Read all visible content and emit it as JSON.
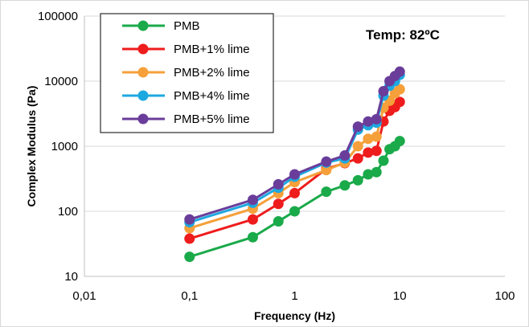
{
  "chart_data": {
    "type": "line",
    "title": "",
    "annotation": "Temp: 82ºC",
    "xlabel": "Frequency (Hz)",
    "ylabel": "Complex Modulus (Pa)",
    "x_scale": "log",
    "y_scale": "log",
    "xlim": [
      0.01,
      100
    ],
    "ylim": [
      10,
      100000
    ],
    "x_ticks": [
      0.01,
      0.1,
      1,
      10,
      100
    ],
    "x_tick_labels": [
      "0,01",
      "0,1",
      "1",
      "10",
      "100"
    ],
    "y_ticks": [
      10,
      100,
      1000,
      10000,
      100000
    ],
    "y_tick_labels": [
      "10",
      "100",
      "1000",
      "10000",
      "100000"
    ],
    "grid": "horizontal",
    "legend_position": "top-left",
    "x": [
      0.1,
      0.4,
      0.7,
      1,
      2,
      3,
      4,
      5,
      6,
      7,
      8,
      9,
      10
    ],
    "series": [
      {
        "name": "PMB",
        "color": "#1aaa4a",
        "values": [
          20,
          40,
          70,
          100,
          200,
          250,
          300,
          370,
          400,
          600,
          900,
          1000,
          1200
        ]
      },
      {
        "name": "PMB+1% lime",
        "color": "#ee1c1c",
        "values": [
          38,
          75,
          130,
          190,
          450,
          550,
          650,
          800,
          850,
          2400,
          3500,
          4000,
          4800
        ]
      },
      {
        "name": "PMB+2% lime",
        "color": "#f5a03a",
        "values": [
          55,
          110,
          190,
          280,
          430,
          560,
          1000,
          1300,
          1400,
          3900,
          5000,
          6500,
          7500
        ]
      },
      {
        "name": "PMB+4% lime",
        "color": "#1ea8e0",
        "values": [
          68,
          135,
          230,
          340,
          560,
          650,
          1800,
          2100,
          2300,
          6000,
          8500,
          10000,
          12500
        ]
      },
      {
        "name": "PMB+5% lime",
        "color": "#6a3d9a",
        "values": [
          75,
          150,
          260,
          370,
          580,
          720,
          2000,
          2400,
          2600,
          7000,
          10000,
          12000,
          14000
        ]
      }
    ]
  }
}
